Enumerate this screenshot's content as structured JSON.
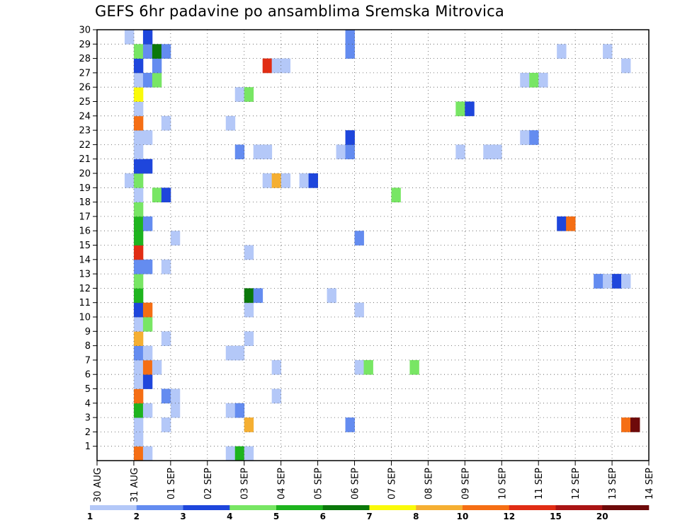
{
  "chart_data": {
    "type": "heatmap",
    "title": "GEFS 6hr padavine po ansamblima Sremska Mitrovica",
    "x_tick_labels": [
      "30 AUG",
      "31 AUG",
      "01 SEP",
      "02 SEP",
      "03 SEP",
      "04 SEP",
      "05 SEP",
      "06 SEP",
      "07 SEP",
      "08 SEP",
      "09 SEP",
      "10 SEP",
      "11 SEP",
      "12 SEP",
      "13 SEP",
      "14 SEP"
    ],
    "y_range": [
      0,
      30
    ],
    "y_tick_labels": [
      "1",
      "2",
      "3",
      "4",
      "5",
      "6",
      "7",
      "8",
      "9",
      "10",
      "11",
      "12",
      "13",
      "14",
      "15",
      "16",
      "17",
      "18",
      "19",
      "20",
      "21",
      "22",
      "23",
      "24",
      "25",
      "26",
      "27",
      "28",
      "29",
      "30"
    ],
    "grid": true,
    "time_step_hours": 6,
    "colorbar": {
      "labels": [
        "1",
        "2",
        "3",
        "4",
        "5",
        "6",
        "7",
        "8",
        "10",
        "12",
        "15",
        "20"
      ],
      "colors": [
        "#b4c8f8",
        "#648cf0",
        "#1e46dc",
        "#78e664",
        "#1eb41e",
        "#0a780a",
        "#fafa0a",
        "#f5af32",
        "#f56e14",
        "#e12d14",
        "#aa1414",
        "#6e0a0a"
      ]
    },
    "cells_note": "x = forecast time in days after 30 AUG 00Z; y = ensemble member; value = precipitation (mm/6h)",
    "cells": [
      {
        "x": 1.0,
        "y": 0,
        "v": 10
      },
      {
        "x": 1.25,
        "y": 0,
        "v": 1
      },
      {
        "x": 1.0,
        "y": 1,
        "v": 1
      },
      {
        "x": 1.0,
        "y": 2,
        "v": 1
      },
      {
        "x": 1.75,
        "y": 2,
        "v": 1
      },
      {
        "x": 1.0,
        "y": 3,
        "v": 5
      },
      {
        "x": 1.25,
        "y": 3,
        "v": 1
      },
      {
        "x": 2.0,
        "y": 3,
        "v": 1
      },
      {
        "x": 1.0,
        "y": 4,
        "v": 10
      },
      {
        "x": 1.75,
        "y": 4,
        "v": 2
      },
      {
        "x": 2.0,
        "y": 4,
        "v": 1
      },
      {
        "x": 1.0,
        "y": 5,
        "v": 1
      },
      {
        "x": 1.25,
        "y": 5,
        "v": 3
      },
      {
        "x": 1.0,
        "y": 6,
        "v": 1
      },
      {
        "x": 1.25,
        "y": 6,
        "v": 10
      },
      {
        "x": 1.5,
        "y": 6,
        "v": 1
      },
      {
        "x": 1.0,
        "y": 7,
        "v": 2
      },
      {
        "x": 1.25,
        "y": 7,
        "v": 1
      },
      {
        "x": 1.0,
        "y": 8,
        "v": 8
      },
      {
        "x": 1.75,
        "y": 8,
        "v": 1
      },
      {
        "x": 1.0,
        "y": 9,
        "v": 1
      },
      {
        "x": 1.25,
        "y": 9,
        "v": 4
      },
      {
        "x": 1.0,
        "y": 10,
        "v": 3
      },
      {
        "x": 1.25,
        "y": 10,
        "v": 10
      },
      {
        "x": 1.0,
        "y": 11,
        "v": 5
      },
      {
        "x": 1.0,
        "y": 12,
        "v": 4
      },
      {
        "x": 1.0,
        "y": 13,
        "v": 2
      },
      {
        "x": 1.25,
        "y": 13,
        "v": 2
      },
      {
        "x": 1.75,
        "y": 13,
        "v": 1
      },
      {
        "x": 1.0,
        "y": 14,
        "v": 12
      },
      {
        "x": 1.0,
        "y": 15,
        "v": 5
      },
      {
        "x": 2.0,
        "y": 15,
        "v": 1
      },
      {
        "x": 1.0,
        "y": 16,
        "v": 5
      },
      {
        "x": 1.25,
        "y": 16,
        "v": 2
      },
      {
        "x": 1.0,
        "y": 17,
        "v": 4
      },
      {
        "x": 1.0,
        "y": 18,
        "v": 1
      },
      {
        "x": 1.5,
        "y": 18,
        "v": 4
      },
      {
        "x": 1.75,
        "y": 18,
        "v": 3
      },
      {
        "x": 0.75,
        "y": 19,
        "v": 1
      },
      {
        "x": 1.0,
        "y": 19,
        "v": 4
      },
      {
        "x": 1.0,
        "y": 20,
        "v": 3
      },
      {
        "x": 1.25,
        "y": 20,
        "v": 3
      },
      {
        "x": 1.0,
        "y": 21,
        "v": 1
      },
      {
        "x": 1.0,
        "y": 22,
        "v": 1
      },
      {
        "x": 1.25,
        "y": 22,
        "v": 1
      },
      {
        "x": 1.0,
        "y": 23,
        "v": 10
      },
      {
        "x": 1.75,
        "y": 23,
        "v": 1
      },
      {
        "x": 1.0,
        "y": 24,
        "v": 1
      },
      {
        "x": 1.0,
        "y": 25,
        "v": 7
      },
      {
        "x": 1.0,
        "y": 26,
        "v": 1
      },
      {
        "x": 1.25,
        "y": 26,
        "v": 2
      },
      {
        "x": 1.5,
        "y": 26,
        "v": 4
      },
      {
        "x": 1.0,
        "y": 27,
        "v": 3
      },
      {
        "x": 1.5,
        "y": 27,
        "v": 2
      },
      {
        "x": 1.0,
        "y": 28,
        "v": 4
      },
      {
        "x": 1.25,
        "y": 28,
        "v": 2
      },
      {
        "x": 1.5,
        "y": 28,
        "v": 6
      },
      {
        "x": 1.75,
        "y": 28,
        "v": 2
      },
      {
        "x": 1.25,
        "y": 29,
        "v": 3
      },
      {
        "x": 0.75,
        "y": 29,
        "v": 1
      },
      {
        "x": 3.5,
        "y": 0,
        "v": 1
      },
      {
        "x": 3.75,
        "y": 0,
        "v": 5
      },
      {
        "x": 4.0,
        "y": 0,
        "v": 1
      },
      {
        "x": 4.0,
        "y": 2,
        "v": 8
      },
      {
        "x": 3.5,
        "y": 3,
        "v": 1
      },
      {
        "x": 3.75,
        "y": 3,
        "v": 2
      },
      {
        "x": 4.75,
        "y": 4,
        "v": 1
      },
      {
        "x": 4.75,
        "y": 6,
        "v": 1
      },
      {
        "x": 3.5,
        "y": 7,
        "v": 1
      },
      {
        "x": 3.75,
        "y": 7,
        "v": 1
      },
      {
        "x": 4.0,
        "y": 8,
        "v": 1
      },
      {
        "x": 4.0,
        "y": 10,
        "v": 1
      },
      {
        "x": 4.0,
        "y": 11,
        "v": 6
      },
      {
        "x": 4.25,
        "y": 11,
        "v": 2
      },
      {
        "x": 4.0,
        "y": 14,
        "v": 1
      },
      {
        "x": 4.5,
        "y": 19,
        "v": 1
      },
      {
        "x": 4.75,
        "y": 19,
        "v": 8
      },
      {
        "x": 5.0,
        "y": 19,
        "v": 1
      },
      {
        "x": 5.5,
        "y": 19,
        "v": 1
      },
      {
        "x": 5.75,
        "y": 19,
        "v": 3
      },
      {
        "x": 3.75,
        "y": 21,
        "v": 2
      },
      {
        "x": 4.25,
        "y": 21,
        "v": 1
      },
      {
        "x": 4.5,
        "y": 21,
        "v": 1
      },
      {
        "x": 3.5,
        "y": 23,
        "v": 1
      },
      {
        "x": 3.75,
        "y": 25,
        "v": 1
      },
      {
        "x": 4.0,
        "y": 25,
        "v": 4
      },
      {
        "x": 4.5,
        "y": 27,
        "v": 12
      },
      {
        "x": 4.75,
        "y": 27,
        "v": 1
      },
      {
        "x": 5.0,
        "y": 27,
        "v": 1
      },
      {
        "x": 6.75,
        "y": 2,
        "v": 2
      },
      {
        "x": 7.0,
        "y": 6,
        "v": 1
      },
      {
        "x": 7.25,
        "y": 6,
        "v": 4
      },
      {
        "x": 7.0,
        "y": 10,
        "v": 1
      },
      {
        "x": 6.25,
        "y": 11,
        "v": 1
      },
      {
        "x": 7.0,
        "y": 15,
        "v": 2
      },
      {
        "x": 8.0,
        "y": 18,
        "v": 4
      },
      {
        "x": 8.5,
        "y": 6,
        "v": 4
      },
      {
        "x": 6.5,
        "y": 21,
        "v": 1
      },
      {
        "x": 6.75,
        "y": 21,
        "v": 2
      },
      {
        "x": 6.75,
        "y": 22,
        "v": 3
      },
      {
        "x": 6.75,
        "y": 28,
        "v": 2
      },
      {
        "x": 6.75,
        "y": 29,
        "v": 2
      },
      {
        "x": 9.75,
        "y": 21,
        "v": 1
      },
      {
        "x": 9.75,
        "y": 24,
        "v": 4
      },
      {
        "x": 10.0,
        "y": 24,
        "v": 3
      },
      {
        "x": 10.5,
        "y": 21,
        "v": 1
      },
      {
        "x": 10.75,
        "y": 21,
        "v": 1
      },
      {
        "x": 11.5,
        "y": 22,
        "v": 1
      },
      {
        "x": 11.75,
        "y": 22,
        "v": 2
      },
      {
        "x": 11.5,
        "y": 26,
        "v": 1
      },
      {
        "x": 11.75,
        "y": 26,
        "v": 4
      },
      {
        "x": 12.0,
        "y": 26,
        "v": 1
      },
      {
        "x": 12.5,
        "y": 28,
        "v": 1
      },
      {
        "x": 12.5,
        "y": 16,
        "v": 3
      },
      {
        "x": 12.75,
        "y": 16,
        "v": 10
      },
      {
        "x": 13.5,
        "y": 12,
        "v": 2
      },
      {
        "x": 13.75,
        "y": 12,
        "v": 1
      },
      {
        "x": 14.0,
        "y": 12,
        "v": 3
      },
      {
        "x": 14.25,
        "y": 12,
        "v": 1
      },
      {
        "x": 13.75,
        "y": 28,
        "v": 1
      },
      {
        "x": 14.25,
        "y": 27,
        "v": 1
      },
      {
        "x": 14.25,
        "y": 2,
        "v": 10
      },
      {
        "x": 14.5,
        "y": 2,
        "v": 20
      }
    ]
  }
}
